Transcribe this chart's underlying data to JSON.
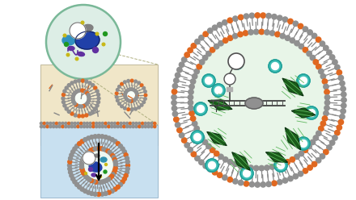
{
  "bg_color": "#ffffff",
  "cell_bg": "#ddeee6",
  "cell_outline": "#7ab898",
  "top_panel_bg": "#f0e6c8",
  "bottom_panel_bg": "#c8e0f0",
  "lipid_gray": "#909090",
  "lipid_orange": "#e06820",
  "green_glow": "#70c030",
  "teal_fill": "#40c0b8",
  "teal_ring": "#20a098",
  "dark_green": "#1a5c1a",
  "mid_green": "#3a8c3a",
  "light_green_hatch": "#60b860",
  "blue_nucleus": "#2040a8",
  "teal_organelle": "#3090c0",
  "gray_organelle": "#808080",
  "purple_org": "#6030a0",
  "yellow_dot": "#c8b818",
  "green_small": "#209820"
}
